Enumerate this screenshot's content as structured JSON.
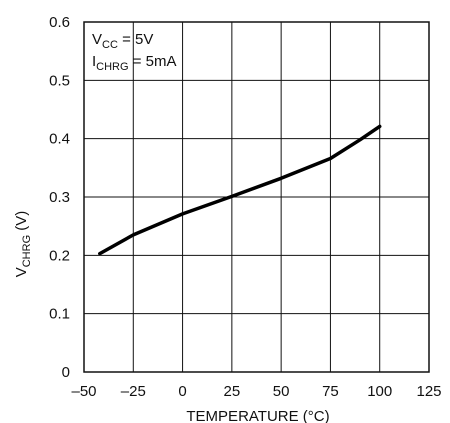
{
  "chart_data": {
    "type": "line",
    "xlabel": "TEMPERATURE (°C)",
    "ylabel": {
      "main": "V",
      "subscript": "CHRG",
      "suffix": " (V)"
    },
    "xlim": [
      -50,
      125
    ],
    "ylim": [
      0,
      0.6
    ],
    "xticks": [
      -50,
      -25,
      0,
      25,
      50,
      75,
      100,
      125
    ],
    "yticks": [
      0,
      0.1,
      0.2,
      0.3,
      0.4,
      0.5,
      0.6
    ],
    "xtick_labels": [
      "–50",
      "–25",
      "0",
      "25",
      "50",
      "75",
      "100",
      "125"
    ],
    "ytick_labels": [
      "0",
      "0.1",
      "0.2",
      "0.3",
      "0.4",
      "0.5",
      "0.6"
    ],
    "grid": true,
    "annotations": [
      {
        "main": "V",
        "subscript": "CC",
        "suffix": " = 5V"
      },
      {
        "main": "I",
        "subscript": "CHRG",
        "suffix": " = 5mA"
      }
    ],
    "series": [
      {
        "x": [
          -42,
          -25,
          0,
          25,
          50,
          75,
          90,
          100
        ],
        "y": [
          0.203,
          0.235,
          0.271,
          0.301,
          0.332,
          0.366,
          0.398,
          0.421
        ]
      }
    ]
  }
}
